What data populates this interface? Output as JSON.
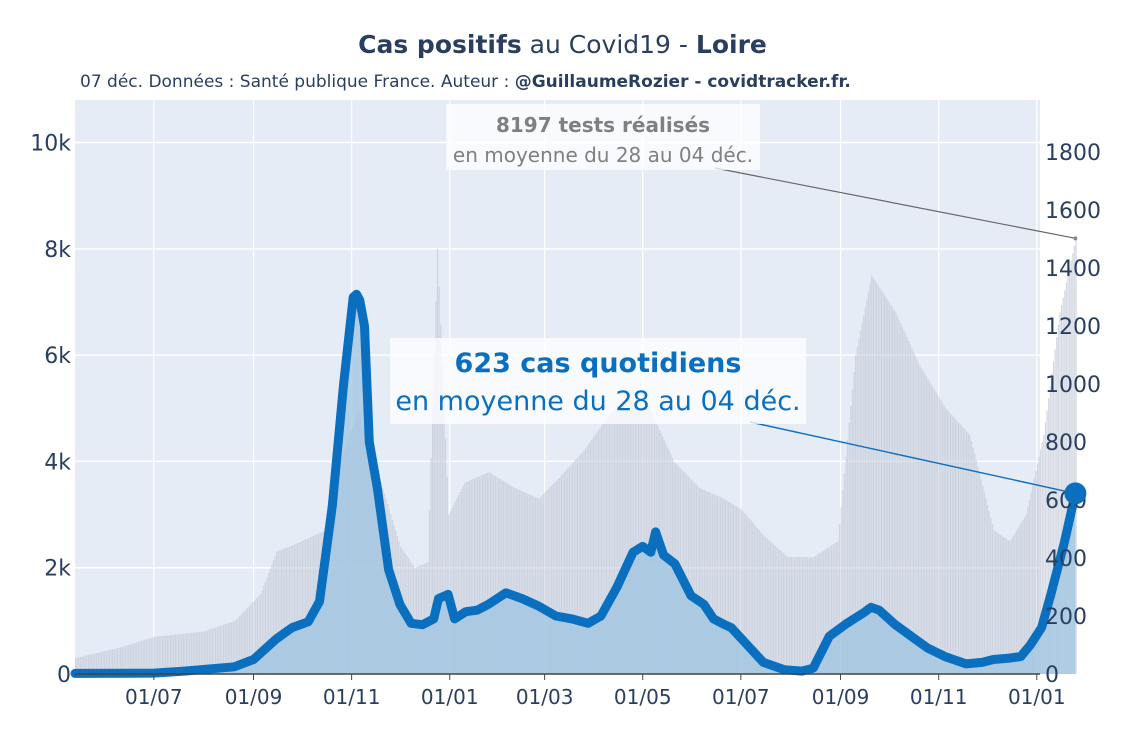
{
  "title": {
    "bold1": "Cas positifs",
    "mid": " au Covid19 - ",
    "bold2": "Loire"
  },
  "subtitle": {
    "text": "07 déc. Données : Santé publique France. Auteur : ",
    "bold": "@GuillaumeRozier - covidtracker.fr."
  },
  "annotations": {
    "tests_line1": "8197 tests réalisés",
    "tests_line2": "en moyenne du 28 au 04 déc.",
    "cases_line1": "623 cas quotidiens",
    "cases_line2": "en moyenne du 28 au 04 déc."
  },
  "colors": {
    "cases_line": "#0b6fc0",
    "cases_fill": "#9fc4e2",
    "tests_bars": "#c5ccd8",
    "plot_bg": "#e5ecf6",
    "grid": "#ffffff",
    "tests_annotation_text": "#808080",
    "cases_annotation_text": "#0b6fc0"
  },
  "chart_data": {
    "type": "line",
    "title": "Cas positifs au Covid19 - Loire",
    "left_axis": {
      "ticks": [
        "0",
        "2k",
        "4k",
        "6k",
        "8k",
        "10k"
      ],
      "range": [
        0,
        10800
      ],
      "series": "tests"
    },
    "right_axis": {
      "ticks": [
        "0",
        "200",
        "400",
        "600",
        "800",
        "1000",
        "1200",
        "1400",
        "1600",
        "1800"
      ],
      "range": [
        0,
        1980
      ],
      "series": "cas"
    },
    "x_axis": {
      "ticks": [
        "01/07",
        "01/09",
        "01/11",
        "01/01",
        "01/03",
        "01/05",
        "01/07",
        "01/09",
        "01/11",
        "01/01"
      ],
      "tick_dates": [
        "2020-07-01",
        "2020-09-01",
        "2020-11-01",
        "2021-01-01",
        "2021-03-01",
        "2021-05-01",
        "2021-07-01",
        "2021-09-01",
        "2021-11-01",
        "2022-01-01"
      ],
      "range": [
        "2020-05-13",
        "2022-01-03"
      ]
    },
    "series": [
      {
        "name": "cas",
        "axis": "right",
        "style": "line+area",
        "points": [
          [
            "2020-05-13",
            2
          ],
          [
            "2020-07-01",
            3
          ],
          [
            "2020-07-20",
            10
          ],
          [
            "2020-08-20",
            25
          ],
          [
            "2020-09-01",
            50
          ],
          [
            "2020-09-15",
            120
          ],
          [
            "2020-09-25",
            160
          ],
          [
            "2020-10-05",
            180
          ],
          [
            "2020-10-12",
            250
          ],
          [
            "2020-10-20",
            580
          ],
          [
            "2020-10-27",
            1000
          ],
          [
            "2020-11-02",
            1300
          ],
          [
            "2020-11-04",
            1310
          ],
          [
            "2020-11-06",
            1290
          ],
          [
            "2020-11-09",
            1200
          ],
          [
            "2020-11-12",
            800
          ],
          [
            "2020-11-17",
            640
          ],
          [
            "2020-11-24",
            360
          ],
          [
            "2020-12-01",
            240
          ],
          [
            "2020-12-08",
            175
          ],
          [
            "2020-12-15",
            170
          ],
          [
            "2020-12-22",
            190
          ],
          [
            "2020-12-25",
            260
          ],
          [
            "2020-12-31",
            275
          ],
          [
            "2021-01-04",
            190
          ],
          [
            "2021-01-11",
            215
          ],
          [
            "2021-01-18",
            220
          ],
          [
            "2021-01-25",
            240
          ],
          [
            "2021-02-05",
            280
          ],
          [
            "2021-02-15",
            260
          ],
          [
            "2021-02-25",
            235
          ],
          [
            "2021-03-08",
            200
          ],
          [
            "2021-03-18",
            190
          ],
          [
            "2021-03-28",
            175
          ],
          [
            "2021-04-05",
            200
          ],
          [
            "2021-04-15",
            300
          ],
          [
            "2021-04-25",
            420
          ],
          [
            "2021-05-01",
            440
          ],
          [
            "2021-05-06",
            420
          ],
          [
            "2021-05-09",
            490
          ],
          [
            "2021-05-14",
            410
          ],
          [
            "2021-05-21",
            380
          ],
          [
            "2021-05-31",
            270
          ],
          [
            "2021-06-08",
            240
          ],
          [
            "2021-06-14",
            190
          ],
          [
            "2021-06-21",
            170
          ],
          [
            "2021-06-25",
            160
          ],
          [
            "2021-07-05",
            100
          ],
          [
            "2021-07-15",
            40
          ],
          [
            "2021-07-28",
            15
          ],
          [
            "2021-08-08",
            10
          ],
          [
            "2021-08-15",
            20
          ],
          [
            "2021-08-25",
            130
          ],
          [
            "2021-09-05",
            175
          ],
          [
            "2021-09-15",
            210
          ],
          [
            "2021-09-20",
            230
          ],
          [
            "2021-09-25",
            220
          ],
          [
            "2021-10-05",
            170
          ],
          [
            "2021-10-15",
            130
          ],
          [
            "2021-10-25",
            90
          ],
          [
            "2021-11-05",
            60
          ],
          [
            "2021-11-18",
            35
          ],
          [
            "2021-11-28",
            40
          ],
          [
            "2021-12-05",
            50
          ],
          [
            "2021-12-15",
            55
          ],
          [
            "2021-12-22",
            60
          ],
          [
            "2021-12-28",
            100
          ],
          [
            "2022-01-04",
            160
          ],
          [
            "2022-01-10",
            280
          ],
          [
            "2022-01-18",
            450
          ],
          [
            "2022-01-25",
            623
          ]
        ]
      },
      {
        "name": "tests",
        "axis": "left",
        "style": "bars",
        "points": [
          [
            "2020-05-13",
            300
          ],
          [
            "2020-06-10",
            500
          ],
          [
            "2020-07-01",
            700
          ],
          [
            "2020-08-01",
            800
          ],
          [
            "2020-08-20",
            1000
          ],
          [
            "2020-09-05",
            1500
          ],
          [
            "2020-09-15",
            2300
          ],
          [
            "2020-10-01",
            2500
          ],
          [
            "2020-10-15",
            2700
          ],
          [
            "2020-10-25",
            4000
          ],
          [
            "2020-11-05",
            5000
          ],
          [
            "2020-11-12",
            4200
          ],
          [
            "2020-11-20",
            3500
          ],
          [
            "2020-12-01",
            2400
          ],
          [
            "2020-12-10",
            2000
          ],
          [
            "2020-12-18",
            2100
          ],
          [
            "2020-12-24",
            8000
          ],
          [
            "2020-12-31",
            3000
          ],
          [
            "2021-01-10",
            3600
          ],
          [
            "2021-01-25",
            3800
          ],
          [
            "2021-02-10",
            3500
          ],
          [
            "2021-02-25",
            3300
          ],
          [
            "2021-03-10",
            3700
          ],
          [
            "2021-03-25",
            4200
          ],
          [
            "2021-04-08",
            4800
          ],
          [
            "2021-04-20",
            5200
          ],
          [
            "2021-05-05",
            5000
          ],
          [
            "2021-05-20",
            4000
          ],
          [
            "2021-06-05",
            3500
          ],
          [
            "2021-06-20",
            3300
          ],
          [
            "2021-07-01",
            3100
          ],
          [
            "2021-07-15",
            2600
          ],
          [
            "2021-07-30",
            2200
          ],
          [
            "2021-08-15",
            2200
          ],
          [
            "2021-08-30",
            2500
          ],
          [
            "2021-09-10",
            6000
          ],
          [
            "2021-09-20",
            7500
          ],
          [
            "2021-10-05",
            6800
          ],
          [
            "2021-10-20",
            5800
          ],
          [
            "2021-11-05",
            5000
          ],
          [
            "2021-11-20",
            4500
          ],
          [
            "2021-12-05",
            2700
          ],
          [
            "2021-12-15",
            2500
          ],
          [
            "2021-12-25",
            3000
          ],
          [
            "2022-01-05",
            4500
          ],
          [
            "2022-01-15",
            6800
          ],
          [
            "2022-01-25",
            8197
          ]
        ]
      }
    ]
  }
}
